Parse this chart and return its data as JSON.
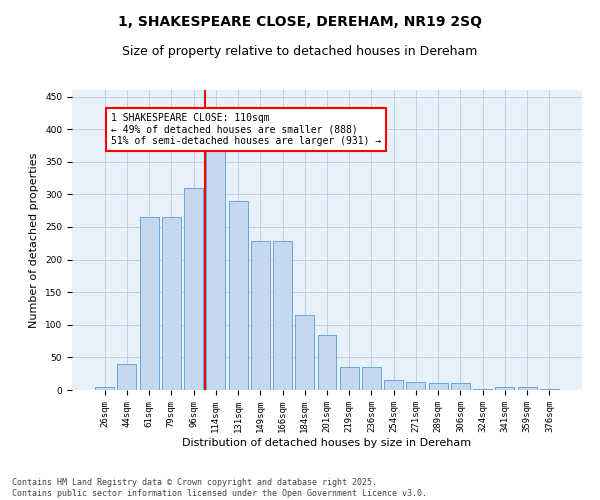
{
  "title": "1, SHAKESPEARE CLOSE, DEREHAM, NR19 2SQ",
  "subtitle": "Size of property relative to detached houses in Dereham",
  "xlabel": "Distribution of detached houses by size in Dereham",
  "ylabel": "Number of detached properties",
  "categories": [
    "26sqm",
    "44sqm",
    "61sqm",
    "79sqm",
    "96sqm",
    "114sqm",
    "131sqm",
    "149sqm",
    "166sqm",
    "184sqm",
    "201sqm",
    "219sqm",
    "236sqm",
    "254sqm",
    "271sqm",
    "289sqm",
    "306sqm",
    "324sqm",
    "341sqm",
    "359sqm",
    "376sqm"
  ],
  "values": [
    5,
    40,
    265,
    265,
    310,
    375,
    290,
    228,
    228,
    115,
    85,
    35,
    35,
    15,
    13,
    10,
    10,
    2,
    5,
    5,
    2
  ],
  "bar_color": "#c5d8f0",
  "bar_edge_color": "#5b9bd5",
  "grid_color": "#bdd0e8",
  "background_color": "#e8f0fa",
  "vline_x": 4.5,
  "vline_color": "red",
  "annotation_text": "1 SHAKESPEARE CLOSE: 110sqm\n← 49% of detached houses are smaller (888)\n51% of semi-detached houses are larger (931) →",
  "annotation_box_color": "white",
  "annotation_box_edge": "red",
  "ylim": [
    0,
    460
  ],
  "yticks": [
    0,
    50,
    100,
    150,
    200,
    250,
    300,
    350,
    400,
    450
  ],
  "footer_line1": "Contains HM Land Registry data © Crown copyright and database right 2025.",
  "footer_line2": "Contains public sector information licensed under the Open Government Licence v3.0.",
  "title_fontsize": 10,
  "subtitle_fontsize": 9,
  "tick_fontsize": 6.5,
  "ylabel_fontsize": 8,
  "xlabel_fontsize": 8,
  "footer_fontsize": 6,
  "annotation_fontsize": 7
}
